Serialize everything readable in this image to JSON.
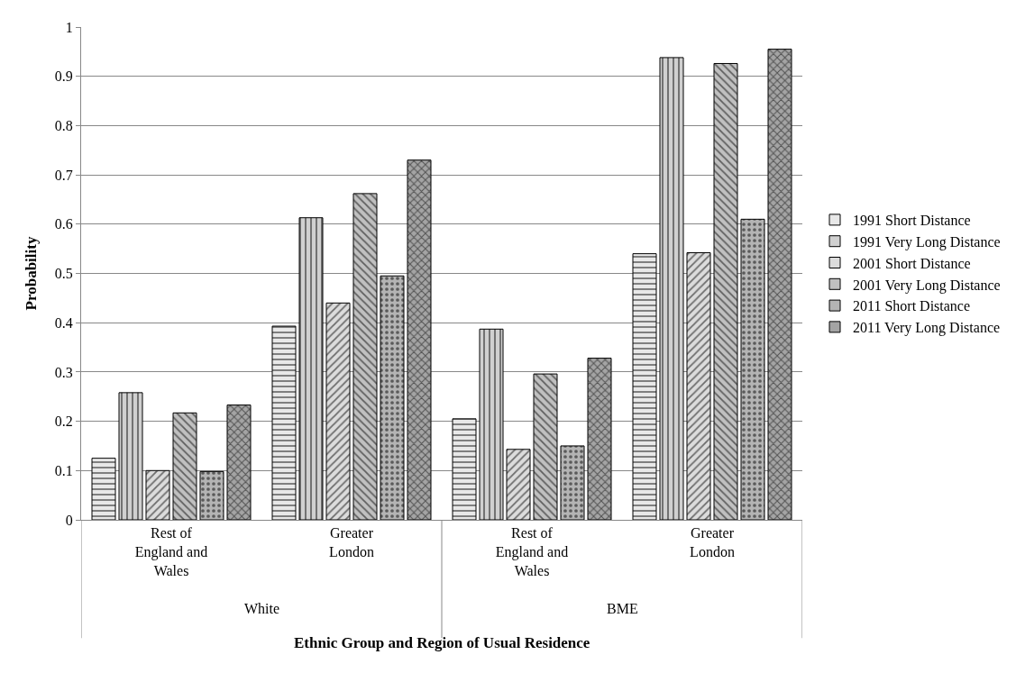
{
  "chart_data": {
    "type": "bar",
    "xlabel": "Ethnic Group and Region of Usual Residence",
    "ylabel": "Probability",
    "categories": [
      "Rest of England and Wales",
      "Greater London",
      "Rest of England and Wales",
      "Greater London"
    ],
    "series": [
      {
        "name": "1991 Short Distance",
        "color": "#e8e8e8",
        "values": [
          0.125,
          0.393,
          0.205,
          0.54
        ]
      },
      {
        "name": "1991 Very Long Distance",
        "color": "#d0d0d0",
        "values": [
          0.258,
          0.613,
          0.387,
          0.938
        ]
      },
      {
        "name": "2001 Short Distance",
        "color": "#dcdcdc",
        "values": [
          0.1,
          0.44,
          0.143,
          0.542
        ]
      },
      {
        "name": "2001 Very Long Distance",
        "color": "#c0c0c0",
        "values": [
          0.217,
          0.662,
          0.296,
          0.926
        ]
      },
      {
        "name": "2011 Short Distance",
        "color": "#b4b4b4",
        "values": [
          0.098,
          0.495,
          0.15,
          0.61
        ]
      },
      {
        "name": "2011 Very Long Distance",
        "color": "#a4a4a4",
        "values": [
          0.233,
          0.73,
          0.328,
          0.955
        ]
      }
    ],
    "annotations": [
      "White",
      "BME"
    ],
    "ylim": [
      0,
      1
    ],
    "yticks": [
      0,
      0.1,
      0.2,
      0.3,
      0.4,
      0.5,
      0.6,
      0.7,
      0.8,
      0.9,
      1
    ],
    "grid": "y",
    "legend": "right"
  }
}
